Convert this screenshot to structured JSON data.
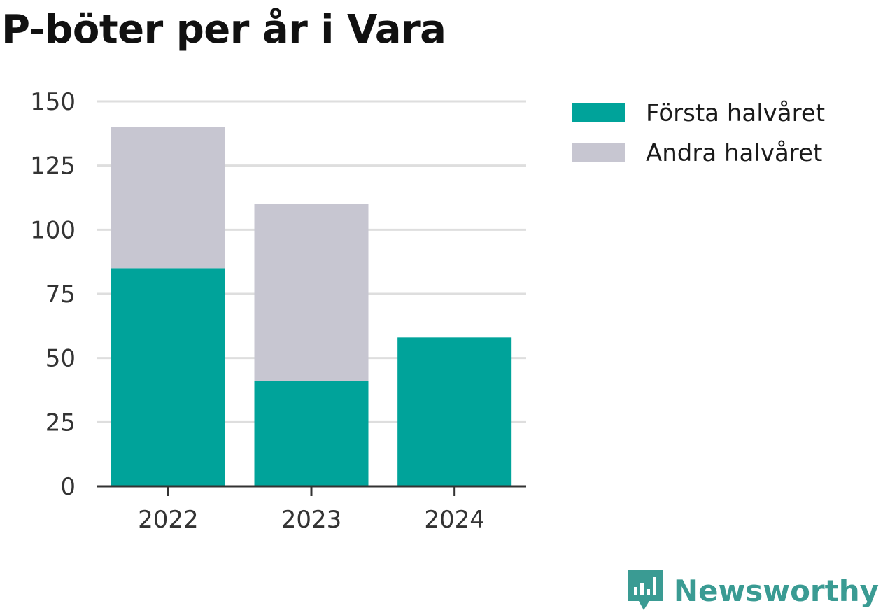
{
  "chart_data": {
    "type": "bar",
    "stacked": true,
    "title": "P-böter per år i Vara",
    "xlabel": "",
    "ylabel": "",
    "categories": [
      "2022",
      "2023",
      "2024"
    ],
    "series": [
      {
        "name": "Första halvåret",
        "values": [
          85,
          41,
          58
        ],
        "color": "#00a39a"
      },
      {
        "name": "Andra halvåret",
        "values": [
          55,
          69,
          0
        ],
        "color": "#c7c6d1"
      }
    ],
    "ylim": [
      0,
      150
    ],
    "yticks": [
      0,
      25,
      50,
      75,
      100,
      125,
      150
    ],
    "grid": true,
    "legend_position": "top-right"
  },
  "brand": {
    "name": "Newsworthy",
    "icon": "newsworthy-logo-icon",
    "color": "#3a9b93"
  }
}
